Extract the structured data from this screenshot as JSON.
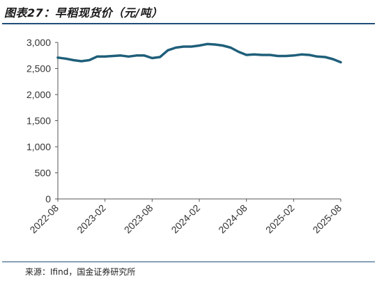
{
  "header": {
    "title": "图表27：早稻现货价（元/吨）"
  },
  "footer": {
    "source": "来源：Ifind，国金证券研究所"
  },
  "chart_data": {
    "type": "line",
    "title": "图表27：早稻现货价（元/吨）",
    "xlabel": "",
    "ylabel": "",
    "ylim": [
      0,
      3000
    ],
    "yticks": [
      0,
      500,
      1000,
      1500,
      2000,
      2500,
      3000
    ],
    "ytick_labels": [
      "0",
      "500",
      "1,000",
      "1,500",
      "2,000",
      "2,500",
      "3,000"
    ],
    "xticks": [
      "2022-08",
      "2023-02",
      "2023-08",
      "2024-02",
      "2024-08",
      "2025-02",
      "2025-08"
    ],
    "grid": false,
    "legend": "none",
    "line_color": "#1f5f7a",
    "series": [
      {
        "x": [
          "2022-08",
          "2022-09",
          "2022-10",
          "2022-11",
          "2022-12",
          "2023-01",
          "2023-02",
          "2023-03",
          "2023-04",
          "2023-05",
          "2023-06",
          "2023-07",
          "2023-08",
          "2023-09",
          "2023-10",
          "2023-11",
          "2023-12",
          "2024-01",
          "2024-02",
          "2024-03",
          "2024-04",
          "2024-05",
          "2024-06",
          "2024-07",
          "2024-08",
          "2024-09",
          "2024-10",
          "2024-11",
          "2024-12",
          "2025-01",
          "2025-02",
          "2025-03",
          "2025-04",
          "2025-05",
          "2025-06",
          "2025-07",
          "2025-08"
        ],
        "values": [
          2710,
          2690,
          2660,
          2640,
          2660,
          2730,
          2730,
          2740,
          2750,
          2730,
          2750,
          2750,
          2700,
          2720,
          2850,
          2900,
          2920,
          2920,
          2940,
          2970,
          2960,
          2940,
          2900,
          2820,
          2760,
          2770,
          2760,
          2760,
          2740,
          2740,
          2750,
          2770,
          2760,
          2730,
          2720,
          2680,
          2620
        ]
      }
    ]
  }
}
